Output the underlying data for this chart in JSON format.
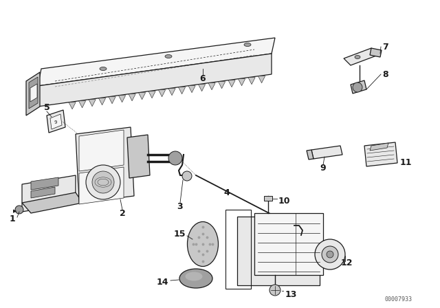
{
  "bg_color": "#ffffff",
  "line_color": "#1a1a1a",
  "fig_width": 6.4,
  "fig_height": 4.48,
  "dpi": 100,
  "watermark": "00007933",
  "light_gray": "#e8e8e8",
  "mid_gray": "#c8c8c8",
  "dark_gray": "#a0a0a0",
  "white": "#f5f5f5"
}
